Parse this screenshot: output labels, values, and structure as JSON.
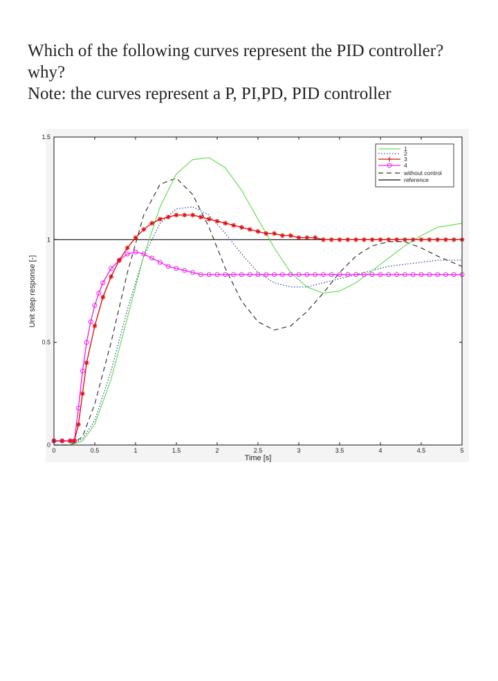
{
  "question": {
    "line1": "Which of the following curves represent the PID controller?",
    "line2": "why?",
    "line3": "Note: the curves represent a P, PI,PD, PID controller"
  },
  "chart_data": {
    "type": "line",
    "xlabel": "Time [s]",
    "ylabel": "Unit step response [-]",
    "xlim": [
      0,
      5
    ],
    "ylim": [
      0,
      1.5
    ],
    "x_ticks": [
      "0",
      "0.5",
      "1",
      "1.5",
      "2",
      "2.5",
      "3",
      "3.5",
      "4",
      "4.5",
      "5"
    ],
    "y_ticks": [
      "0",
      "0.5",
      "1",
      "1.5"
    ],
    "grid": false,
    "legend_position": "top-right",
    "reference_value": 1,
    "series": [
      {
        "name": "1",
        "color": "#66dd55",
        "style": "solid",
        "marker": "none",
        "x": [
          0,
          0.2,
          0.35,
          0.5,
          0.7,
          0.9,
          1.1,
          1.3,
          1.5,
          1.7,
          1.9,
          2.1,
          2.3,
          2.5,
          2.7,
          2.9,
          3.1,
          3.3,
          3.5,
          3.7,
          3.9,
          4.1,
          4.3,
          4.5,
          4.7,
          5.0
        ],
        "y": [
          0,
          0,
          0.02,
          0.1,
          0.32,
          0.62,
          0.92,
          1.16,
          1.32,
          1.39,
          1.4,
          1.35,
          1.24,
          1.1,
          0.96,
          0.84,
          0.77,
          0.74,
          0.75,
          0.79,
          0.85,
          0.91,
          0.97,
          1.02,
          1.06,
          1.08
        ]
      },
      {
        "name": "2",
        "color": "#3344aa",
        "style": "dotted",
        "marker": "none",
        "x": [
          0,
          0.2,
          0.35,
          0.5,
          0.7,
          0.9,
          1.1,
          1.3,
          1.5,
          1.7,
          1.9,
          2.1,
          2.3,
          2.5,
          2.7,
          2.9,
          3.1,
          3.3,
          3.5,
          3.7,
          3.9,
          4.1,
          4.3,
          4.5,
          4.7,
          5.0
        ],
        "y": [
          0,
          0,
          0.03,
          0.12,
          0.36,
          0.66,
          0.92,
          1.08,
          1.15,
          1.16,
          1.12,
          1.03,
          0.93,
          0.84,
          0.79,
          0.77,
          0.77,
          0.79,
          0.81,
          0.83,
          0.85,
          0.87,
          0.88,
          0.89,
          0.9,
          0.9
        ]
      },
      {
        "name": "3",
        "color": "#dd1111",
        "style": "solid",
        "marker": "star",
        "x": [
          0,
          0.1,
          0.2,
          0.25,
          0.3,
          0.35,
          0.4,
          0.5,
          0.6,
          0.7,
          0.8,
          0.9,
          1.0,
          1.1,
          1.2,
          1.3,
          1.4,
          1.5,
          1.6,
          1.7,
          1.8,
          1.9,
          2.0,
          2.1,
          2.2,
          2.3,
          2.4,
          2.5,
          2.6,
          2.7,
          2.8,
          2.9,
          3.0,
          3.1,
          3.2,
          3.3,
          3.4,
          3.5,
          3.6,
          3.7,
          3.8,
          3.9,
          4.0,
          4.1,
          4.2,
          4.3,
          4.4,
          4.5,
          4.6,
          4.7,
          4.8,
          4.9,
          5.0
        ],
        "y": [
          0.02,
          0.02,
          0.02,
          0.02,
          0.1,
          0.25,
          0.4,
          0.58,
          0.72,
          0.82,
          0.9,
          0.96,
          1.01,
          1.05,
          1.08,
          1.1,
          1.11,
          1.12,
          1.12,
          1.12,
          1.11,
          1.1,
          1.09,
          1.08,
          1.07,
          1.06,
          1.05,
          1.04,
          1.03,
          1.03,
          1.02,
          1.02,
          1.01,
          1.01,
          1.01,
          1.0,
          1.0,
          1.0,
          1.0,
          1.0,
          1.0,
          1.0,
          1.0,
          1.0,
          1.0,
          1.0,
          1.0,
          1.0,
          1.0,
          1.0,
          1.0,
          1.0,
          1.0
        ]
      },
      {
        "name": "4",
        "color": "#ee22ee",
        "style": "solid",
        "marker": "circle",
        "x": [
          0,
          0.1,
          0.2,
          0.25,
          0.3,
          0.35,
          0.4,
          0.45,
          0.5,
          0.55,
          0.6,
          0.7,
          0.8,
          0.9,
          1.0,
          1.1,
          1.2,
          1.3,
          1.4,
          1.5,
          1.6,
          1.7,
          1.8,
          1.9,
          2.0,
          2.1,
          2.2,
          2.3,
          2.4,
          2.5,
          2.6,
          2.7,
          2.8,
          2.9,
          3.0,
          3.1,
          3.2,
          3.3,
          3.4,
          3.5,
          3.6,
          3.7,
          3.8,
          3.9,
          4.0,
          4.1,
          4.2,
          4.3,
          4.4,
          4.5,
          4.6,
          4.7,
          4.8,
          4.9,
          5.0
        ],
        "y": [
          0.02,
          0.02,
          0.02,
          0.02,
          0.18,
          0.36,
          0.5,
          0.6,
          0.68,
          0.74,
          0.79,
          0.86,
          0.9,
          0.93,
          0.94,
          0.93,
          0.91,
          0.89,
          0.87,
          0.86,
          0.85,
          0.84,
          0.83,
          0.83,
          0.83,
          0.83,
          0.83,
          0.83,
          0.83,
          0.83,
          0.83,
          0.83,
          0.83,
          0.83,
          0.83,
          0.83,
          0.83,
          0.83,
          0.83,
          0.83,
          0.83,
          0.83,
          0.83,
          0.83,
          0.83,
          0.83,
          0.83,
          0.83,
          0.83,
          0.83,
          0.83,
          0.83,
          0.83,
          0.83,
          0.83
        ]
      },
      {
        "name": "without control",
        "color": "#333333",
        "style": "dashed",
        "marker": "none",
        "x": [
          0,
          0.2,
          0.35,
          0.5,
          0.7,
          0.9,
          1.1,
          1.3,
          1.5,
          1.7,
          1.9,
          2.1,
          2.3,
          2.5,
          2.7,
          2.9,
          3.1,
          3.3,
          3.5,
          3.7,
          3.9,
          4.1,
          4.3,
          4.5,
          4.7,
          5.0
        ],
        "y": [
          0,
          0,
          0.04,
          0.2,
          0.5,
          0.84,
          1.12,
          1.27,
          1.3,
          1.22,
          1.06,
          0.86,
          0.7,
          0.6,
          0.56,
          0.58,
          0.65,
          0.74,
          0.84,
          0.92,
          0.97,
          0.99,
          0.99,
          0.96,
          0.92,
          0.87
        ]
      },
      {
        "name": "reference",
        "color": "#111111",
        "style": "solid",
        "marker": "none",
        "x": [
          0,
          5
        ],
        "y": [
          1,
          1
        ]
      }
    ]
  }
}
